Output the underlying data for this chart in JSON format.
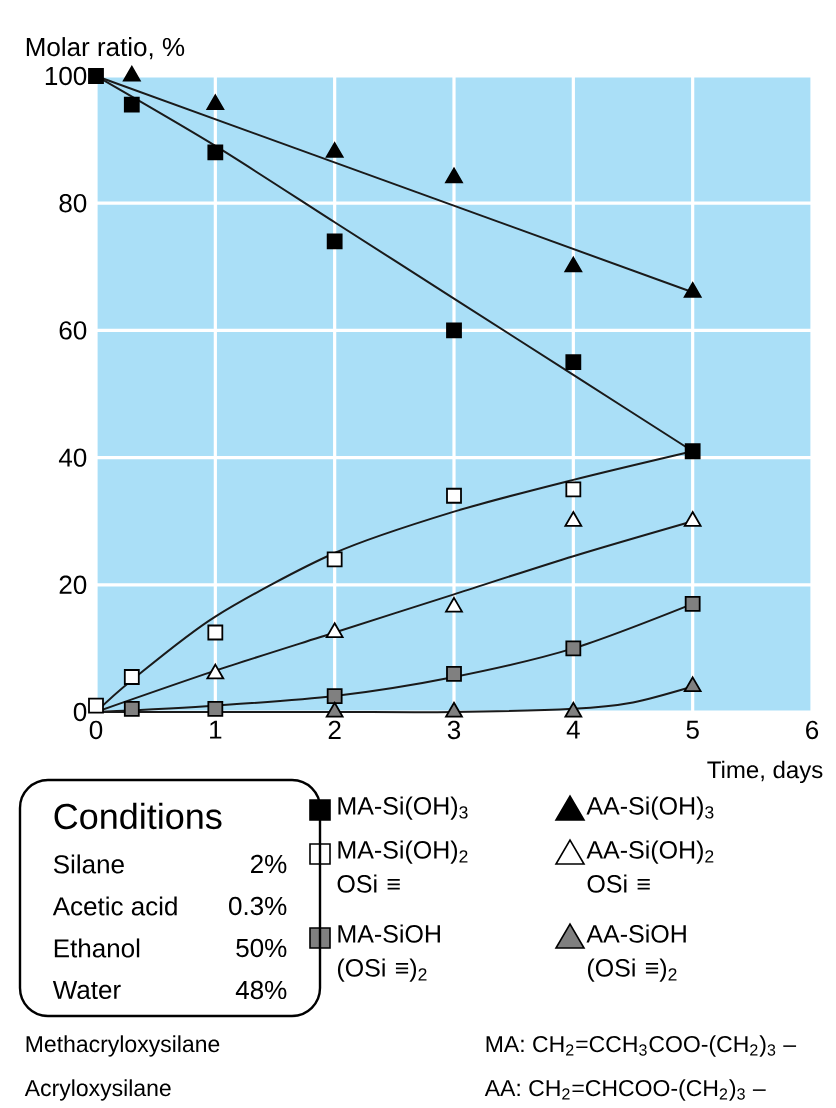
{
  "chart_data": {
    "type": "scatter",
    "ylabel": "Molar ratio, %",
    "xlabel": "Time, days",
    "xlim": [
      0,
      6
    ],
    "ylim": [
      0,
      100
    ],
    "xticks": [
      0,
      1,
      2,
      3,
      4,
      5,
      6
    ],
    "yticks": [
      0,
      20,
      40,
      60,
      80,
      100
    ],
    "grid": true,
    "legend": "bottom right",
    "series": [
      {
        "name": "MA-Si(OH)$_{3}$",
        "marker": "square",
        "color": "#000000",
        "x": [
          0,
          0.3,
          1,
          2,
          3,
          4,
          5
        ],
        "values": [
          100,
          95.5,
          88,
          74,
          60,
          55,
          41
        ]
      },
      {
        "name": "AA-Si(OH)$_{3}$",
        "marker": "triangle",
        "color": "#000000",
        "x": [
          0.3,
          1,
          2,
          3,
          4,
          5
        ],
        "values": [
          100,
          95.5,
          88,
          84,
          70,
          66
        ]
      },
      {
        "name": "MA-Si(OH)$_{2}$ OSi ≡",
        "marker": "square",
        "color": "#ffffff",
        "x": [
          0,
          0.3,
          1,
          2,
          3,
          4
        ],
        "values": [
          1,
          5.5,
          12.5,
          24,
          34,
          35
        ]
      },
      {
        "name": "AA-Si(OH)$_{2}$ OSi ≡",
        "marker": "triangle",
        "color": "#ffffff",
        "x": [
          1,
          2,
          3,
          4,
          5
        ],
        "values": [
          6,
          12.5,
          16.5,
          30,
          30
        ]
      },
      {
        "name": "MA-SiOH (OSi ≡)$_{2}$",
        "marker": "square",
        "color": "#808080",
        "x": [
          0.3,
          1,
          2,
          3,
          4,
          5
        ],
        "values": [
          0.5,
          0.5,
          2.5,
          6,
          10,
          17
        ]
      },
      {
        "name": "AA-SiOH (OSi ≡)$_{2}$",
        "marker": "triangle",
        "color": "#808080",
        "x": [
          2,
          3,
          4,
          5
        ],
        "values": [
          0,
          0,
          0,
          4
        ]
      },
      {
        "type": "line",
        "color": "#1a1a1a",
        "x": [
          0,
          1,
          2,
          3,
          4,
          5
        ],
        "values": [
          100,
          89,
          77,
          65,
          53,
          41
        ]
      },
      {
        "type": "line",
        "color": "#1a1a1a",
        "x": [
          0,
          5
        ],
        "values": [
          100,
          66
        ]
      },
      {
        "type": "line",
        "color": "#1a1a1a",
        "x": [
          0,
          0.3,
          1,
          2,
          3,
          4,
          5
        ],
        "values": [
          0,
          5,
          15,
          25,
          31.5,
          36.5,
          41
        ]
      },
      {
        "type": "line",
        "color": "#1a1a1a",
        "x": [
          0,
          1,
          2,
          3,
          4,
          5
        ],
        "values": [
          0,
          6.5,
          12.5,
          18.5,
          24.5,
          30
        ]
      },
      {
        "type": "line",
        "color": "#1a1a1a",
        "x": [
          0,
          1,
          2,
          3,
          4,
          5
        ],
        "values": [
          0,
          1,
          2.5,
          5.5,
          10,
          17
        ]
      },
      {
        "type": "line",
        "color": "#1a1a1a",
        "x": [
          0,
          1,
          2,
          3,
          4,
          4.5,
          5
        ],
        "values": [
          0,
          0,
          0,
          0,
          0.5,
          1.5,
          4
        ]
      }
    ],
    "annotations": [
      "Conditions",
      "Silane",
      "2%",
      "Acetic acid",
      "0.3%",
      "Ethanol",
      "50%",
      "Water",
      "48%",
      "Methacryloxysilane",
      "Acryloxysilane",
      "MA: CH$_{2}$=CCH$_{3}$COO-(CH$_{2}$)$_{3}$ –",
      "AA: CH$_{2}$=CHCOO-(CH$_{2}$)$_{3}$ –"
    ]
  }
}
